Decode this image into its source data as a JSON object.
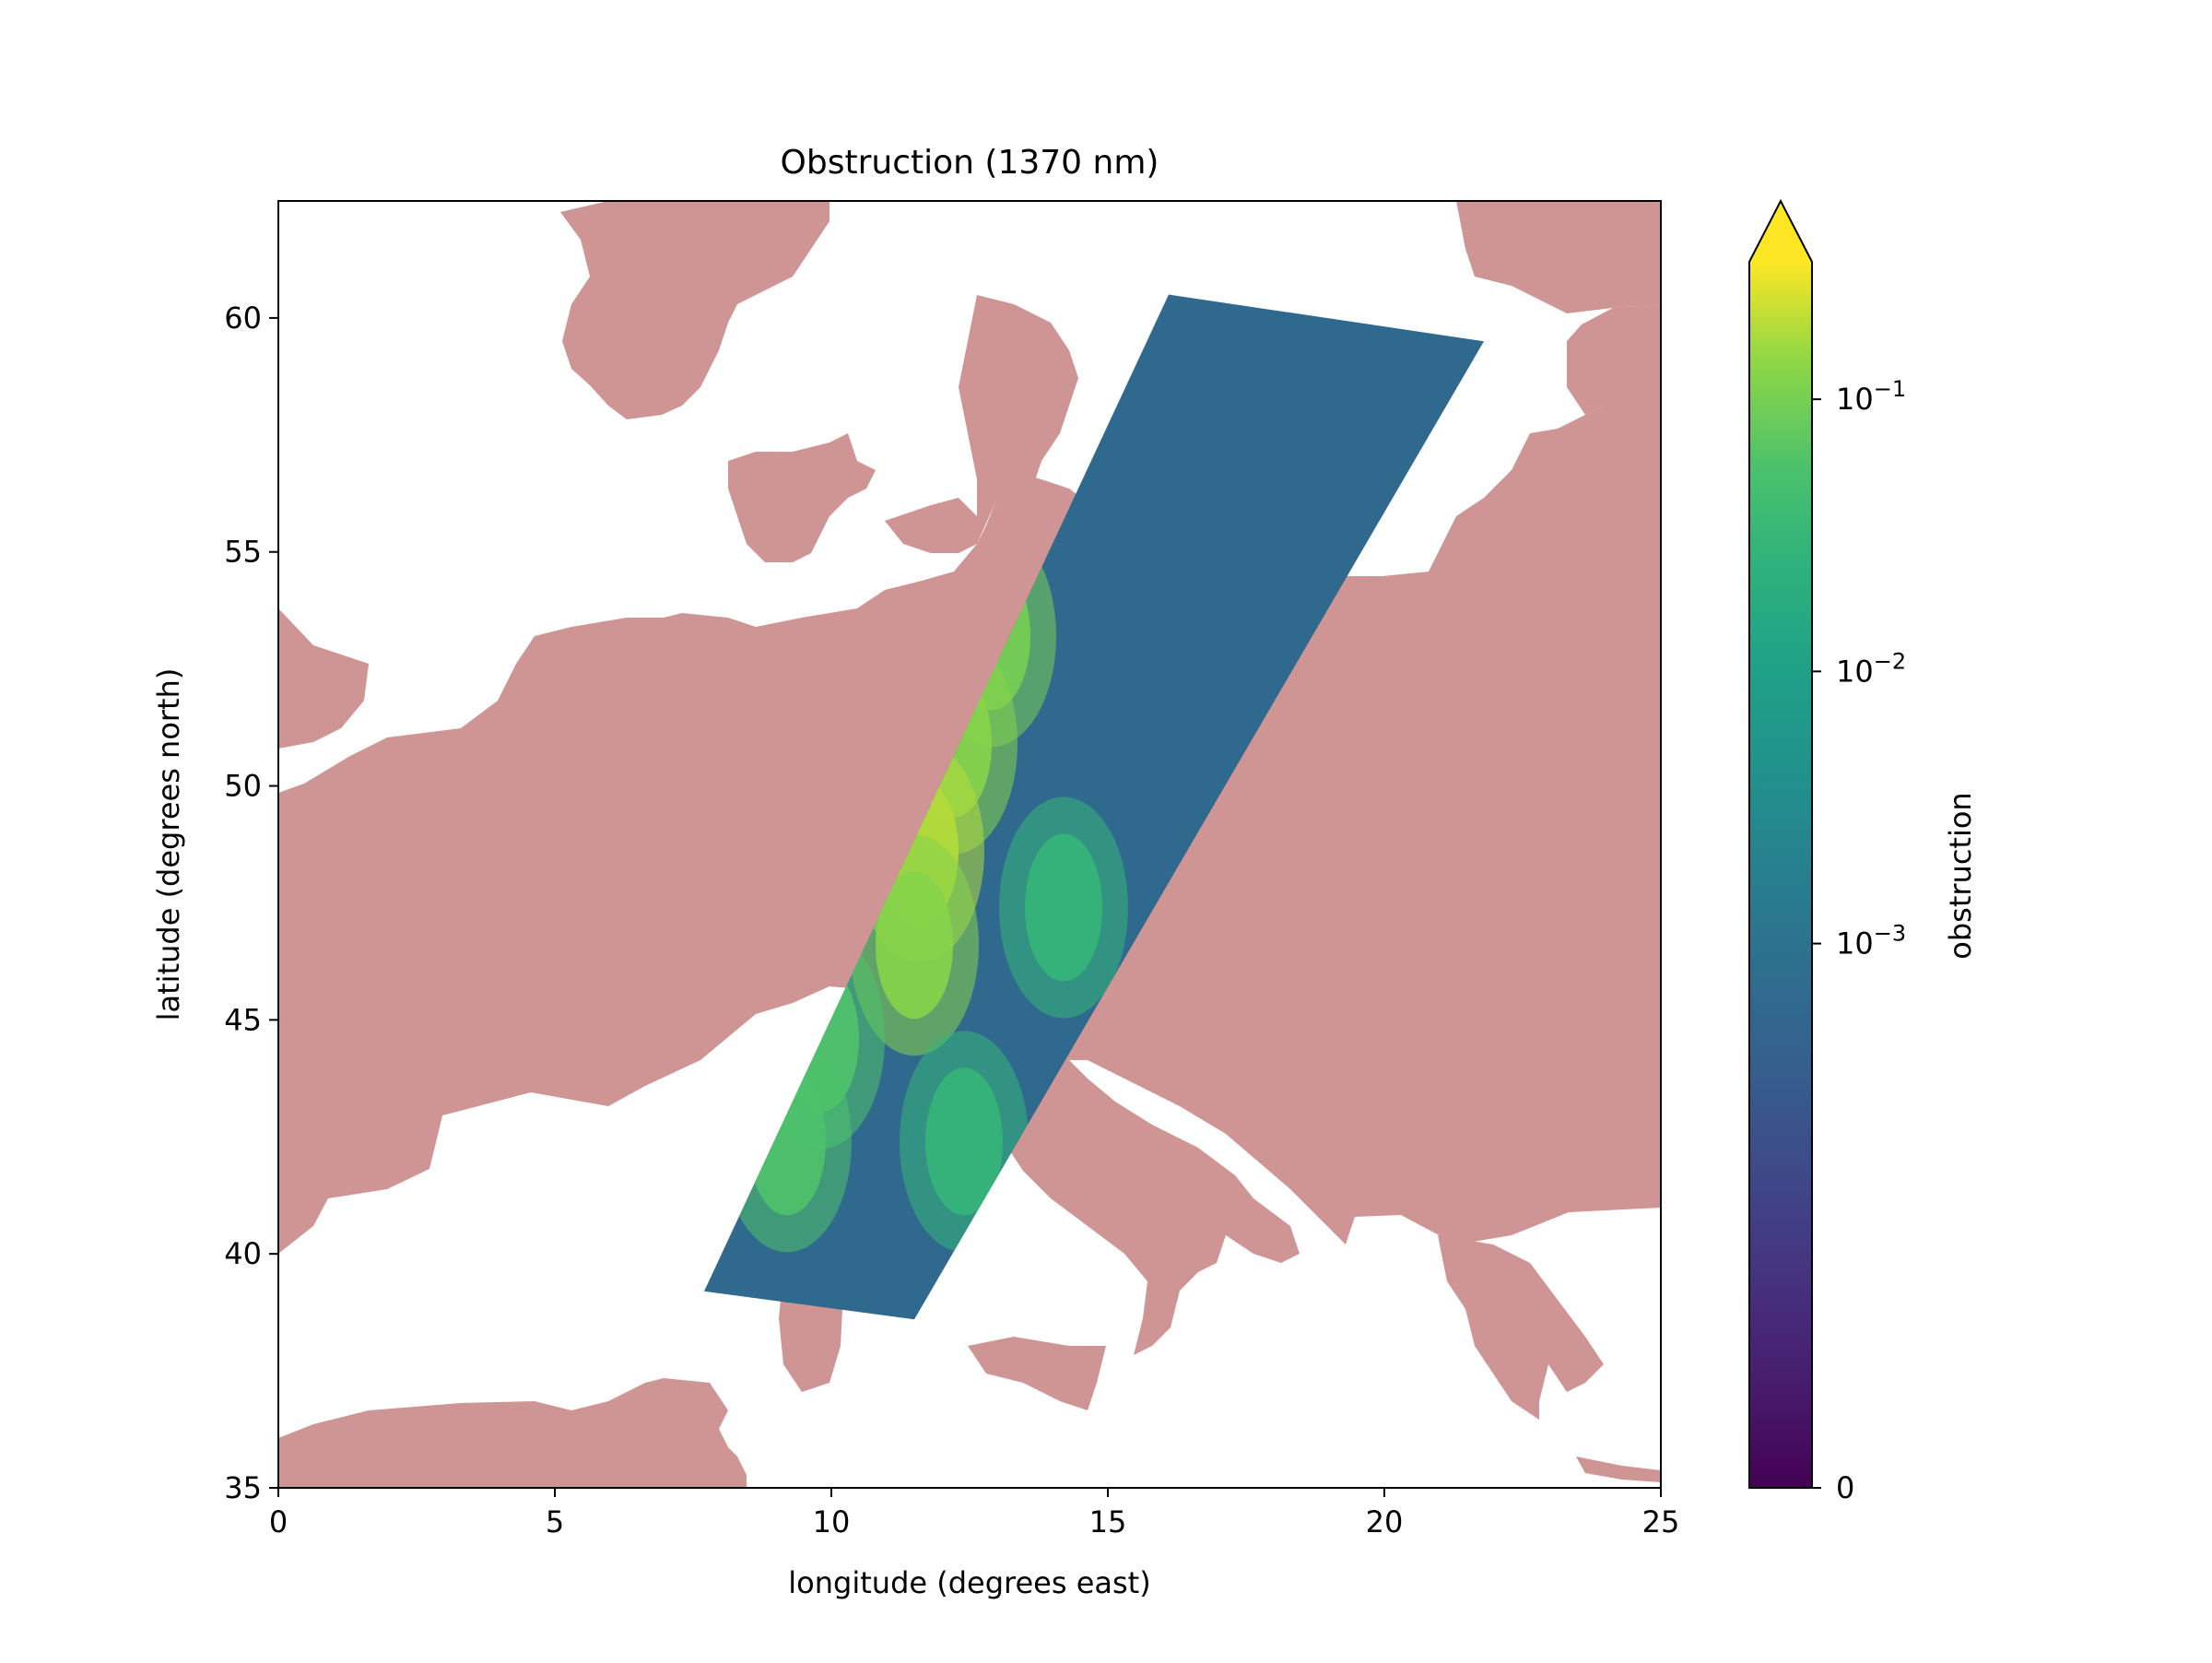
{
  "chart_data": {
    "type": "heatmap",
    "title": "Obstruction (1370 nm)",
    "xlabel": "longitude (degrees east)",
    "ylabel": "latitude (degrees north)",
    "xlim": [
      0,
      25
    ],
    "ylim": [
      35,
      62.5
    ],
    "xticks": [
      0,
      5,
      10,
      15,
      20,
      25
    ],
    "yticks": [
      35,
      40,
      45,
      50,
      55,
      60
    ],
    "xtick_labels": [
      "0",
      "5",
      "10",
      "15",
      "20",
      "25"
    ],
    "ytick_labels": [
      "35",
      "40",
      "45",
      "50",
      "55",
      "60"
    ],
    "grid": false,
    "colormap": "viridis",
    "colorbar": {
      "label": "obstruction",
      "scale": "symlog",
      "extend": "max",
      "tick_values": [
        0,
        0.001,
        0.01,
        0.1
      ],
      "tick_labels": [
        {
          "base": "0",
          "exp": ""
        },
        {
          "base": "10",
          "exp": "−3"
        },
        {
          "base": "10",
          "exp": "−2"
        },
        {
          "base": "10",
          "exp": "−1"
        }
      ]
    },
    "land_color": "#cf9494",
    "swath_corners": {
      "north_west": [
        16.1,
        60.5
      ],
      "north_east": [
        21.8,
        59.5
      ],
      "south_east": [
        11.5,
        38.6
      ],
      "south_west": [
        7.7,
        39.2
      ]
    },
    "swath_background_value": 0.0006,
    "high_obstruction_regions": [
      {
        "lon": 12.9,
        "lat": 53.2,
        "value": 0.1
      },
      {
        "lon": 12.2,
        "lat": 50.9,
        "value": 0.12
      },
      {
        "lon": 11.6,
        "lat": 48.6,
        "value": 0.18
      },
      {
        "lon": 11.5,
        "lat": 46.6,
        "value": 0.12
      },
      {
        "lon": 9.8,
        "lat": 44.6,
        "value": 0.06
      },
      {
        "lon": 9.2,
        "lat": 42.4,
        "value": 0.06
      },
      {
        "lon": 12.4,
        "lat": 42.4,
        "value": 0.03
      },
      {
        "lon": 14.2,
        "lat": 47.4,
        "value": 0.03
      }
    ]
  }
}
